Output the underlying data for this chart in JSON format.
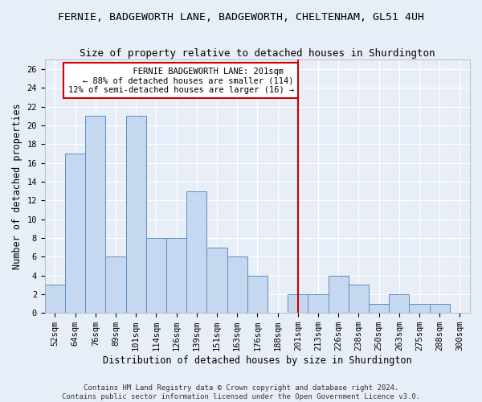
{
  "title_line1": "FERNIE, BADGEWORTH LANE, BADGEWORTH, CHELTENHAM, GL51 4UH",
  "title_line2": "Size of property relative to detached houses in Shurdington",
  "xlabel": "Distribution of detached houses by size in Shurdington",
  "ylabel": "Number of detached properties",
  "footer1": "Contains HM Land Registry data © Crown copyright and database right 2024.",
  "footer2": "Contains public sector information licensed under the Open Government Licence v3.0.",
  "bar_labels": [
    "52sqm",
    "64sqm",
    "76sqm",
    "89sqm",
    "101sqm",
    "114sqm",
    "126sqm",
    "139sqm",
    "151sqm",
    "163sqm",
    "176sqm",
    "188sqm",
    "201sqm",
    "213sqm",
    "226sqm",
    "238sqm",
    "250sqm",
    "263sqm",
    "275sqm",
    "288sqm",
    "300sqm"
  ],
  "bar_values": [
    3,
    17,
    21,
    6,
    21,
    8,
    8,
    13,
    7,
    6,
    4,
    0,
    2,
    2,
    4,
    3,
    1,
    2,
    1,
    1,
    0
  ],
  "bar_color": "#c5d8f0",
  "bar_edge_color": "#5a8fc0",
  "reference_line_x": 12,
  "annotation_line1": "  FERNIE BADGEWORTH LANE: 201sqm  ",
  "annotation_line2": "← 88% of detached houses are smaller (114)",
  "annotation_line3": "12% of semi-detached houses are larger (16) →",
  "annotation_box_color": "#ffffff",
  "annotation_box_edge": "#cc0000",
  "ref_line_color": "#cc0000",
  "ylim": [
    0,
    27
  ],
  "yticks": [
    0,
    2,
    4,
    6,
    8,
    10,
    12,
    14,
    16,
    18,
    20,
    22,
    24,
    26
  ],
  "bg_color": "#e8eef8",
  "plot_bg_color": "#e8eef8",
  "grid_color": "#ffffff",
  "title_fontsize": 9.5,
  "subtitle_fontsize": 9,
  "axis_label_fontsize": 8.5,
  "tick_fontsize": 7.5,
  "annotation_fontsize": 7.5,
  "footer_fontsize": 6.5
}
